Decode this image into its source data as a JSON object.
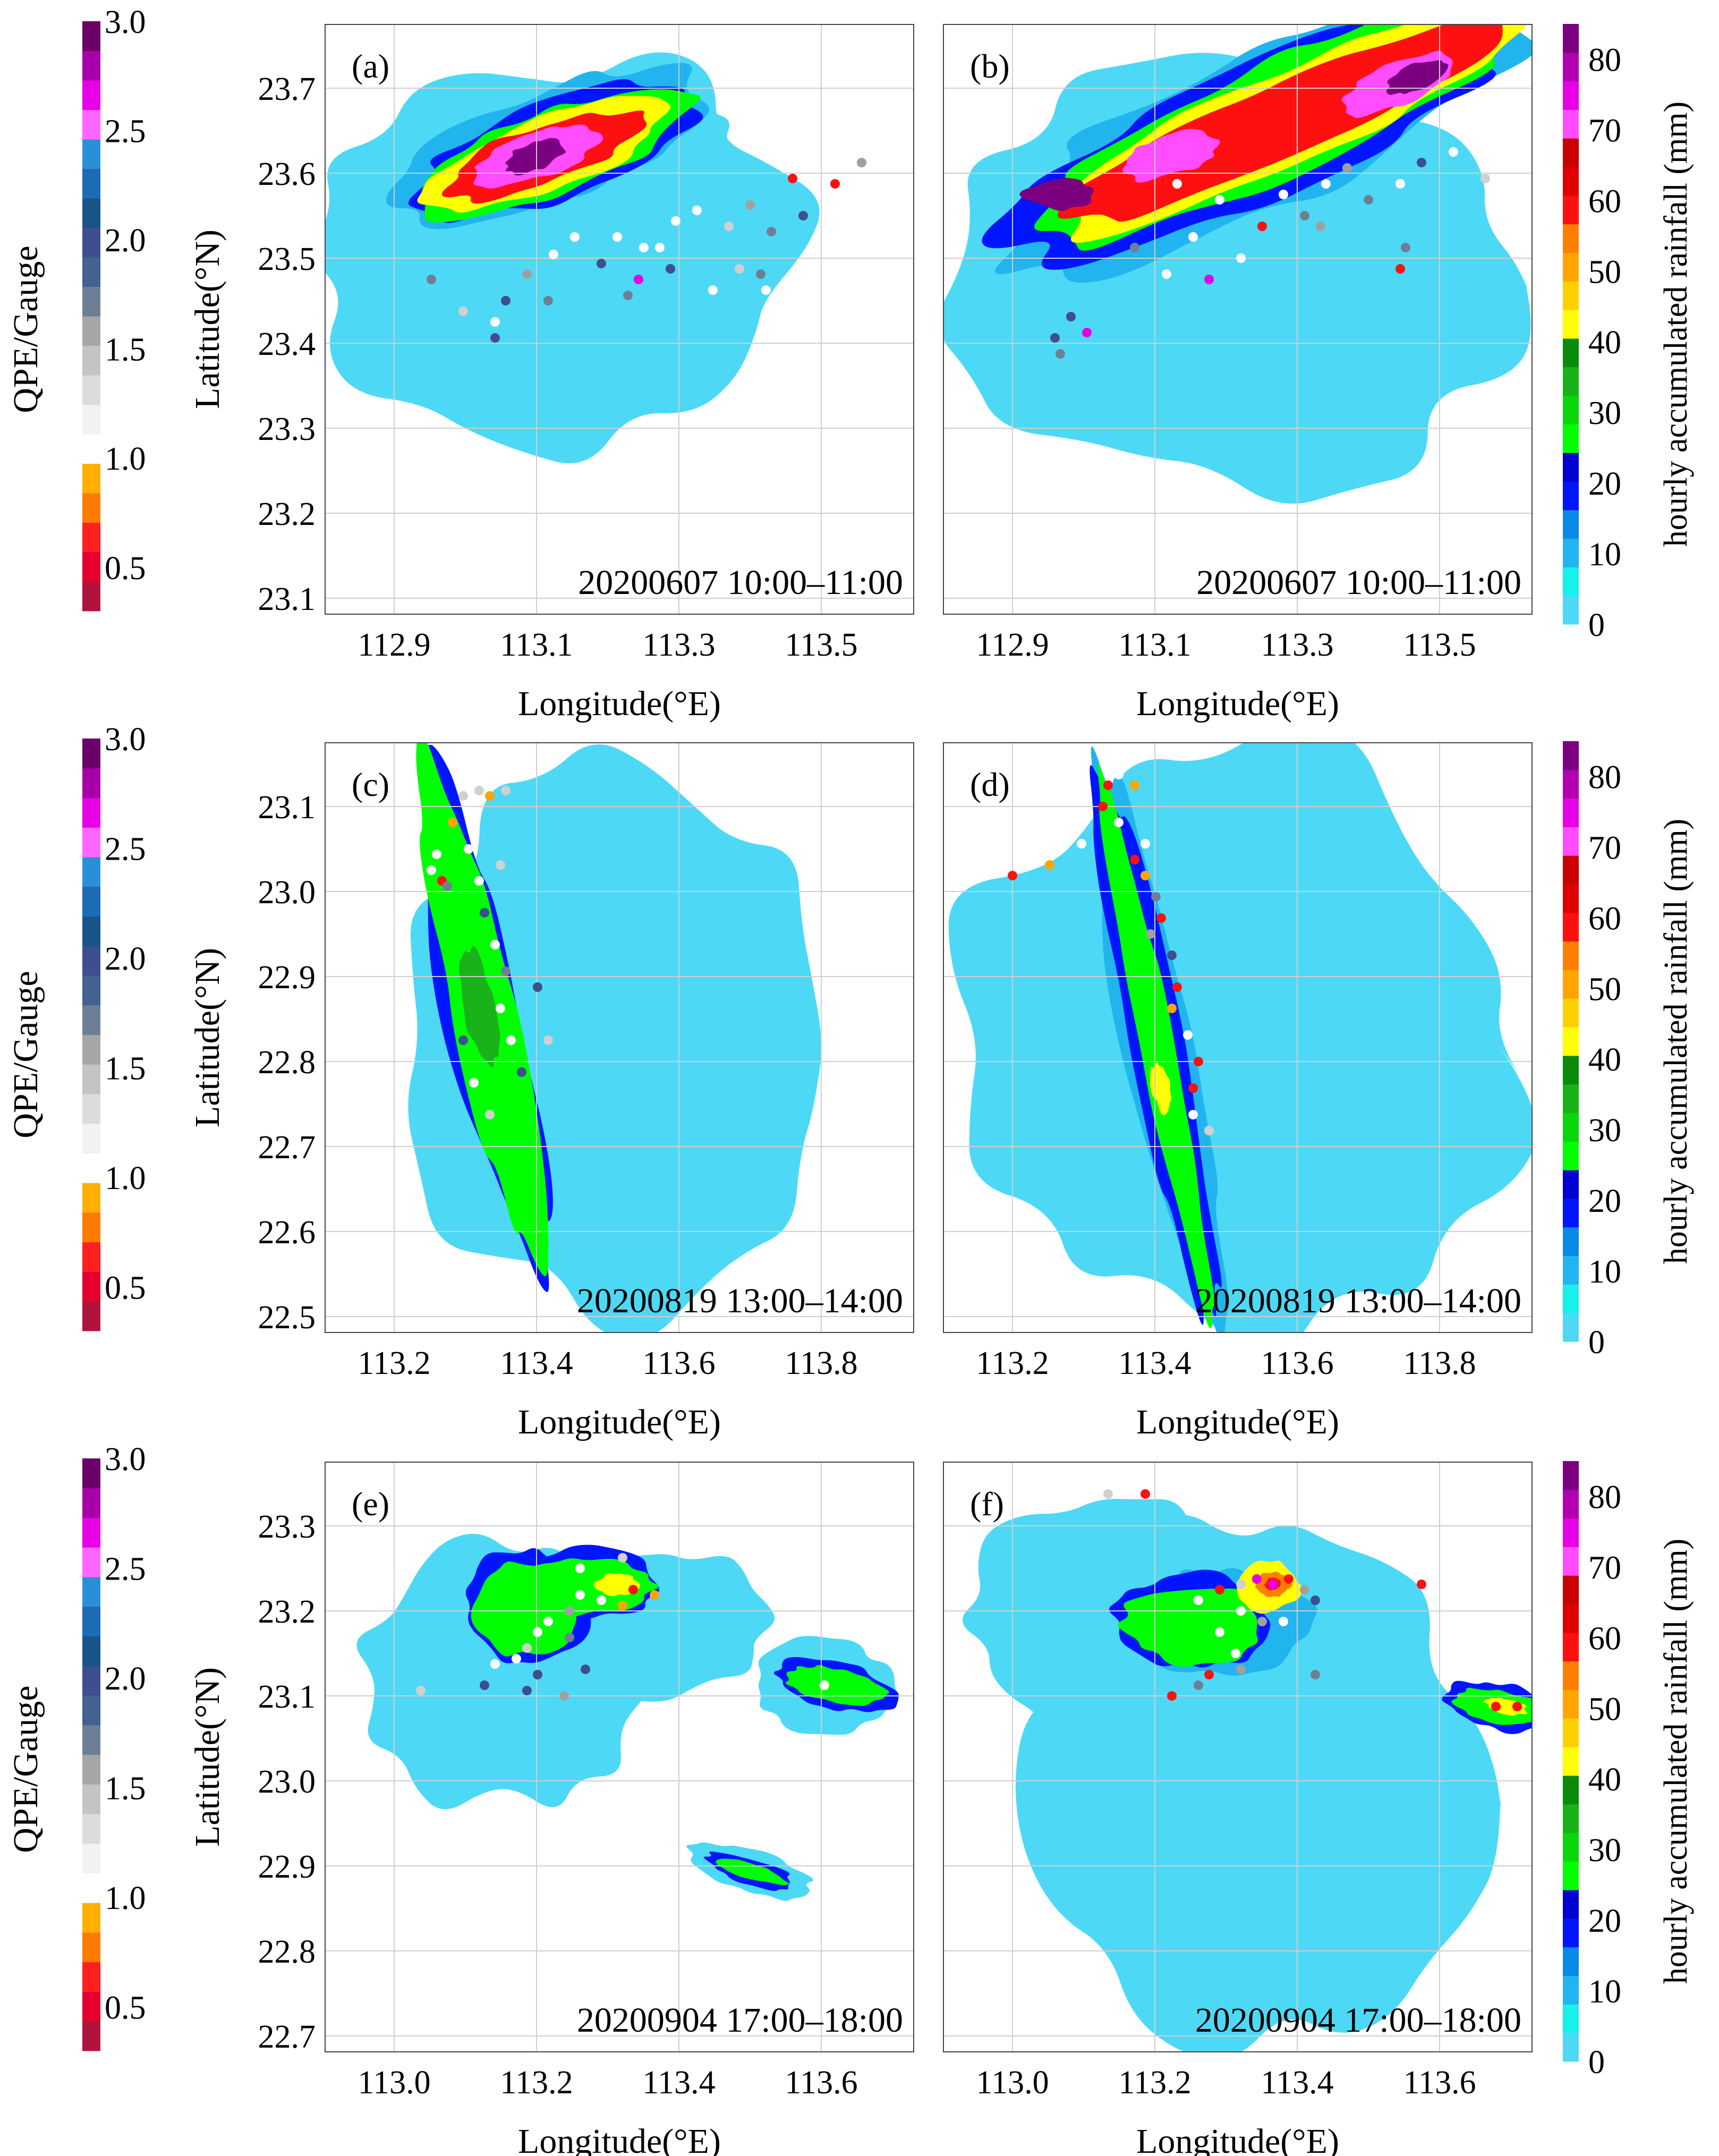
{
  "chart_data": {
    "type": "heatmap",
    "rows": [
      {
        "date_label": "20200607 10:00–11:00",
        "lon_ticks": [
          "112.9",
          "113.1",
          "113.3",
          "113.5"
        ],
        "lat_ticks": [
          "23.7",
          "23.6",
          "23.5",
          "23.4",
          "23.3",
          "23.2",
          "23.1"
        ],
        "panels": [
          {
            "label": "(a)",
            "stations": true
          },
          {
            "label": "(b)",
            "stations": true
          }
        ]
      },
      {
        "date_label": "20200819 13:00–14:00",
        "lon_ticks": [
          "113.2",
          "113.4",
          "113.6",
          "113.8"
        ],
        "lat_ticks": [
          "23.1",
          "23.0",
          "22.9",
          "22.8",
          "22.7",
          "22.6",
          "22.5"
        ],
        "panels": [
          {
            "label": "(c)",
            "stations": true
          },
          {
            "label": "(d)",
            "stations": true
          }
        ]
      },
      {
        "date_label": "20200904 17:00–18:00",
        "lon_ticks": [
          "113.0",
          "113.2",
          "113.4",
          "113.6"
        ],
        "lat_ticks": [
          "23.3",
          "23.2",
          "23.1",
          "23.0",
          "22.9",
          "22.8",
          "22.7"
        ],
        "panels": [
          {
            "label": "(e)",
            "stations": true
          },
          {
            "label": "(f)",
            "stations": true
          }
        ]
      }
    ],
    "xlabel": "Longitude(°E)",
    "ylabel": "Latitude(°N)",
    "left_colorbar": {
      "label": "QPE/Gauge",
      "ticks": [
        "3.0",
        "2.5",
        "2.0",
        "1.5",
        "1.0",
        "0.5"
      ],
      "range": [
        0.3,
        3.0
      ],
      "colors": [
        "#b0143c",
        "#e5002e",
        "#ff1f1f",
        "#ff7a00",
        "#ffb000",
        "#ffffff",
        "#f2f2f2",
        "#dcdcdc",
        "#c4c4c4",
        "#a6a6a6",
        "#6e7f95",
        "#42628f",
        "#3d4f8e",
        "#185488",
        "#1b6cb5",
        "#2b8fd8",
        "#ff66ff",
        "#e600e6",
        "#a800a8",
        "#6a0068"
      ]
    },
    "right_colorbar": {
      "label": "hourly accumulated rainfall (mm)",
      "ticks": [
        "80",
        "70",
        "60",
        "50",
        "40",
        "30",
        "20",
        "10",
        "0"
      ],
      "range": [
        0,
        85
      ],
      "colors": [
        "#4dd9f5",
        "#19f0ee",
        "#22b4ee",
        "#0a8ae6",
        "#0015ff",
        "#0000d0",
        "#00ff00",
        "#0bd60b",
        "#1ab21a",
        "#0c8a0c",
        "#ffff00",
        "#ffd000",
        "#ffa500",
        "#ff8000",
        "#ff1010",
        "#e00000",
        "#c80000",
        "#ff4dff",
        "#e600e6",
        "#b000b0",
        "#7a0080"
      ]
    },
    "station_colors": [
      "#ffffff",
      "#ffffff",
      "#f0f0f0",
      "#d0d0d0",
      "#a0a0a0",
      "#6e7f95",
      "#3d4f8e",
      "#42628f",
      "#ff1010",
      "#ffa500",
      "#e600e6",
      "#6a0068"
    ]
  }
}
